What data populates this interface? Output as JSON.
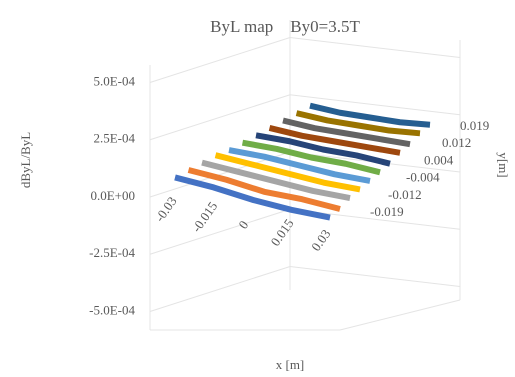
{
  "chart_data": {
    "type": "3d-line",
    "title": "ByL map    By0=3.5T",
    "ylabel": "dByL/ByL",
    "xlabel": "x [m]",
    "zlabel": "y[m]",
    "categories": [
      -0.03,
      -0.015,
      0,
      0.015,
      0.03
    ],
    "ylim": [
      -0.0005,
      0.0005
    ],
    "yticks": [
      {
        "value": 0.0005,
        "label": "5.0E-04"
      },
      {
        "value": 0.00025,
        "label": "2.5E-04"
      },
      {
        "value": 0,
        "label": "0.0E+00"
      },
      {
        "value": -0.00025,
        "label": "-2.5E-04"
      },
      {
        "value": -0.0005,
        "label": "-5.0E-04"
      }
    ],
    "series": [
      {
        "name": "-0.019",
        "color": "#4472c4",
        "values": [
          2e-05,
          1e-05,
          -1e-05,
          -2e-05,
          -2e-05
        ]
      },
      {
        "name": null,
        "color": "#ed7d31",
        "values": [
          2e-05,
          1e-05,
          -1e-05,
          -1e-05,
          -2e-05
        ]
      },
      {
        "name": "-0.012",
        "color": "#a5a5a5",
        "values": [
          2e-05,
          1e-05,
          0,
          -1e-05,
          -1e-05
        ]
      },
      {
        "name": null,
        "color": "#ffc000",
        "values": [
          2e-05,
          1e-05,
          0,
          -1e-05,
          -1e-05
        ]
      },
      {
        "name": "-0.004",
        "color": "#5b9bd5",
        "values": [
          1e-05,
          1e-05,
          0,
          -1e-05,
          -1e-05
        ]
      },
      {
        "name": null,
        "color": "#70ad47",
        "values": [
          1e-05,
          1e-05,
          0,
          0,
          -1e-05
        ]
      },
      {
        "name": "0.004",
        "color": "#264478",
        "values": [
          1e-05,
          1e-05,
          0,
          0,
          -1e-05
        ]
      },
      {
        "name": null,
        "color": "#9e480e",
        "values": [
          1e-05,
          0,
          0,
          0,
          0
        ]
      },
      {
        "name": "0.012",
        "color": "#636363",
        "values": [
          1e-05,
          0,
          0,
          0,
          0
        ]
      },
      {
        "name": null,
        "color": "#997300",
        "values": [
          1e-05,
          0,
          0,
          0,
          1e-05
        ]
      },
      {
        "name": "0.019",
        "color": "#255e91",
        "values": [
          1e-05,
          0,
          0,
          0,
          1e-05
        ]
      }
    ]
  }
}
